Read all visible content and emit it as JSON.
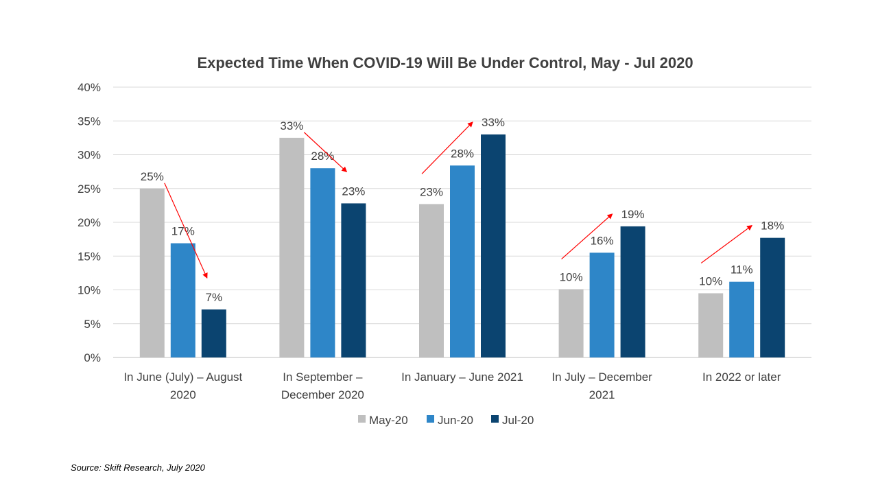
{
  "chart_data": {
    "type": "bar",
    "title": "Expected Time When COVID-19 Will Be Under Control, May - Jul 2020",
    "xlabel": "",
    "ylabel": "",
    "ylim": [
      0,
      40
    ],
    "y_ticks": [
      "0%",
      "5%",
      "10%",
      "15%",
      "20%",
      "25%",
      "30%",
      "35%",
      "40%"
    ],
    "y_tick_values": [
      0,
      5,
      10,
      15,
      20,
      25,
      30,
      35,
      40
    ],
    "grid": true,
    "legend_position": "bottom",
    "categories": [
      [
        "In June (July) – August",
        "2020"
      ],
      [
        "In September –",
        "December 2020"
      ],
      [
        "In January – June 2021"
      ],
      [
        "In July – December",
        "2021"
      ],
      [
        "In 2022 or later"
      ]
    ],
    "series": [
      {
        "name": "May-20",
        "color": "#BFBFBF",
        "values": [
          25,
          32.5,
          22.7,
          10.1,
          9.5
        ],
        "labels": [
          "25%",
          "33%",
          "23%",
          "10%",
          "10%"
        ]
      },
      {
        "name": "Jun-20",
        "color": "#2E86C8",
        "values": [
          16.9,
          28,
          28.4,
          15.5,
          11.2
        ],
        "labels": [
          "17%",
          "28%",
          "28%",
          "16%",
          "11%"
        ]
      },
      {
        "name": "Jul-20",
        "color": "#0B4470",
        "values": [
          7.1,
          22.8,
          33,
          19.4,
          17.7
        ],
        "labels": [
          "7%",
          "23%",
          "33%",
          "19%",
          "18%"
        ]
      }
    ],
    "trend_arrows": [
      "down",
      "down",
      "up",
      "up",
      "up"
    ],
    "arrow_color": "#FF0000"
  },
  "source": "Source: Skift Research, July 2020"
}
